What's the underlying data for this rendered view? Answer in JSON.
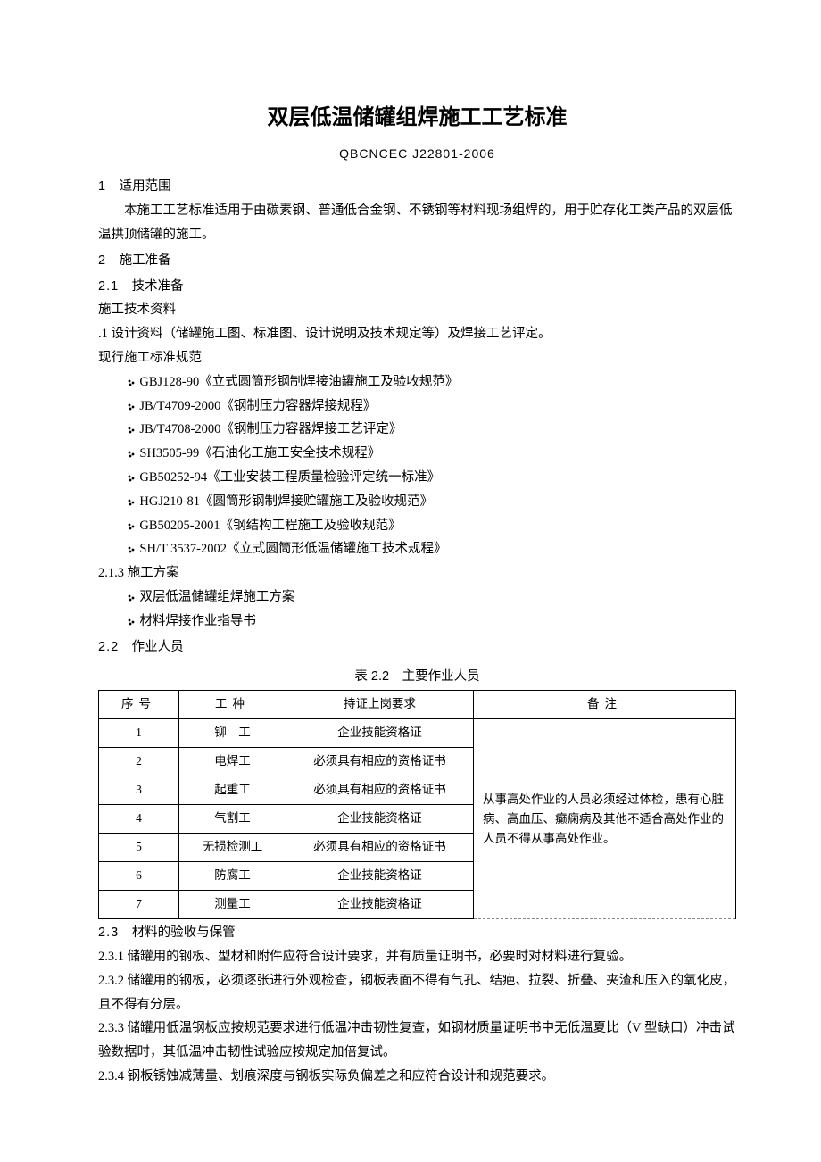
{
  "title": "双层低温储罐组焊施工工艺标准",
  "doc_code": "QBCNCEC J22801-2006",
  "s1": {
    "num": "1",
    "title": "适用范围",
    "body": "本施工工艺标准适用于由碳素钢、普通低合金钢、不锈钢等材料现场组焊的，用于贮存化工类产品的双层低温拱顶储罐的施工。"
  },
  "s2": {
    "num": "2",
    "title": "施工准备"
  },
  "s21": {
    "num": "2.1",
    "title": "技术准备",
    "l1": "施工技术资料",
    "l2": ".1 设计资料（储罐施工图、标准图、设计说明及技术规定等）及焊接工艺评定。",
    "l3": "现行施工标准规范"
  },
  "standards": [
    "GBJ128-90《立式圆筒形钢制焊接油罐施工及验收规范》",
    "JB/T4709-2000《钢制压力容器焊接规程》",
    "JB/T4708-2000《钢制压力容器焊接工艺评定》",
    "SH3505-99《石油化工施工安全技术规程》",
    "GB50252-94《工业安装工程质量检验评定统一标准》",
    "HGJ210-81《圆筒形钢制焊接贮罐施工及验收规范》",
    "GB50205-2001《钢结构工程施工及验收规范》",
    "SH/T 3537-2002《立式圆筒形低温储罐施工技术规程》"
  ],
  "s213": {
    "num": "2.1.3",
    "title": "施工方案"
  },
  "plans": [
    "双层低温储罐组焊施工方案",
    "材料焊接作业指导书"
  ],
  "s22": {
    "num": "2.2",
    "title": "作业人员"
  },
  "table": {
    "caption": "表 2.2　主要作业人员",
    "headers": {
      "seq": "序号",
      "type": "工种",
      "req": "持证上岗要求",
      "note": "备注"
    },
    "rows": [
      {
        "seq": "1",
        "type": "铆　工",
        "req": "企业技能资格证"
      },
      {
        "seq": "2",
        "type": "电焊工",
        "req": "必须具有相应的资格证书"
      },
      {
        "seq": "3",
        "type": "起重工",
        "req": "必须具有相应的资格证书"
      },
      {
        "seq": "4",
        "type": "气割工",
        "req": "企业技能资格证"
      },
      {
        "seq": "5",
        "type": "无损检测工",
        "req": "必须具有相应的资格证书"
      },
      {
        "seq": "6",
        "type": "防腐工",
        "req": "企业技能资格证"
      },
      {
        "seq": "7",
        "type": "测量工",
        "req": "企业技能资格证"
      }
    ],
    "note": "从事高处作业的人员必须经过体检，患有心脏病、高血压、癫痫病及其他不适合高处作业的人员不得从事高处作业。"
  },
  "s23": {
    "num": "2.3",
    "title": "材料的验收与保管",
    "p1": "2.3.1 储罐用的钢板、型材和附件应符合设计要求，并有质量证明书，必要时对材料进行复验。",
    "p2": "2.3.2 储罐用的钢板，必须逐张进行外观检查，钢板表面不得有气孔、结疤、拉裂、折叠、夹渣和压入的氧化皮，且不得有分层。",
    "p3": "2.3.3 储罐用低温钢板应按规范要求进行低温冲击韧性复查，如钢材质量证明书中无低温夏比（V 型缺口）冲击试验数据时，其低温冲击韧性试验应按规定加倍复试。",
    "p4": "2.3.4 钢板锈蚀减薄量、划痕深度与钢板实际负偏差之和应符合设计和规范要求。"
  }
}
